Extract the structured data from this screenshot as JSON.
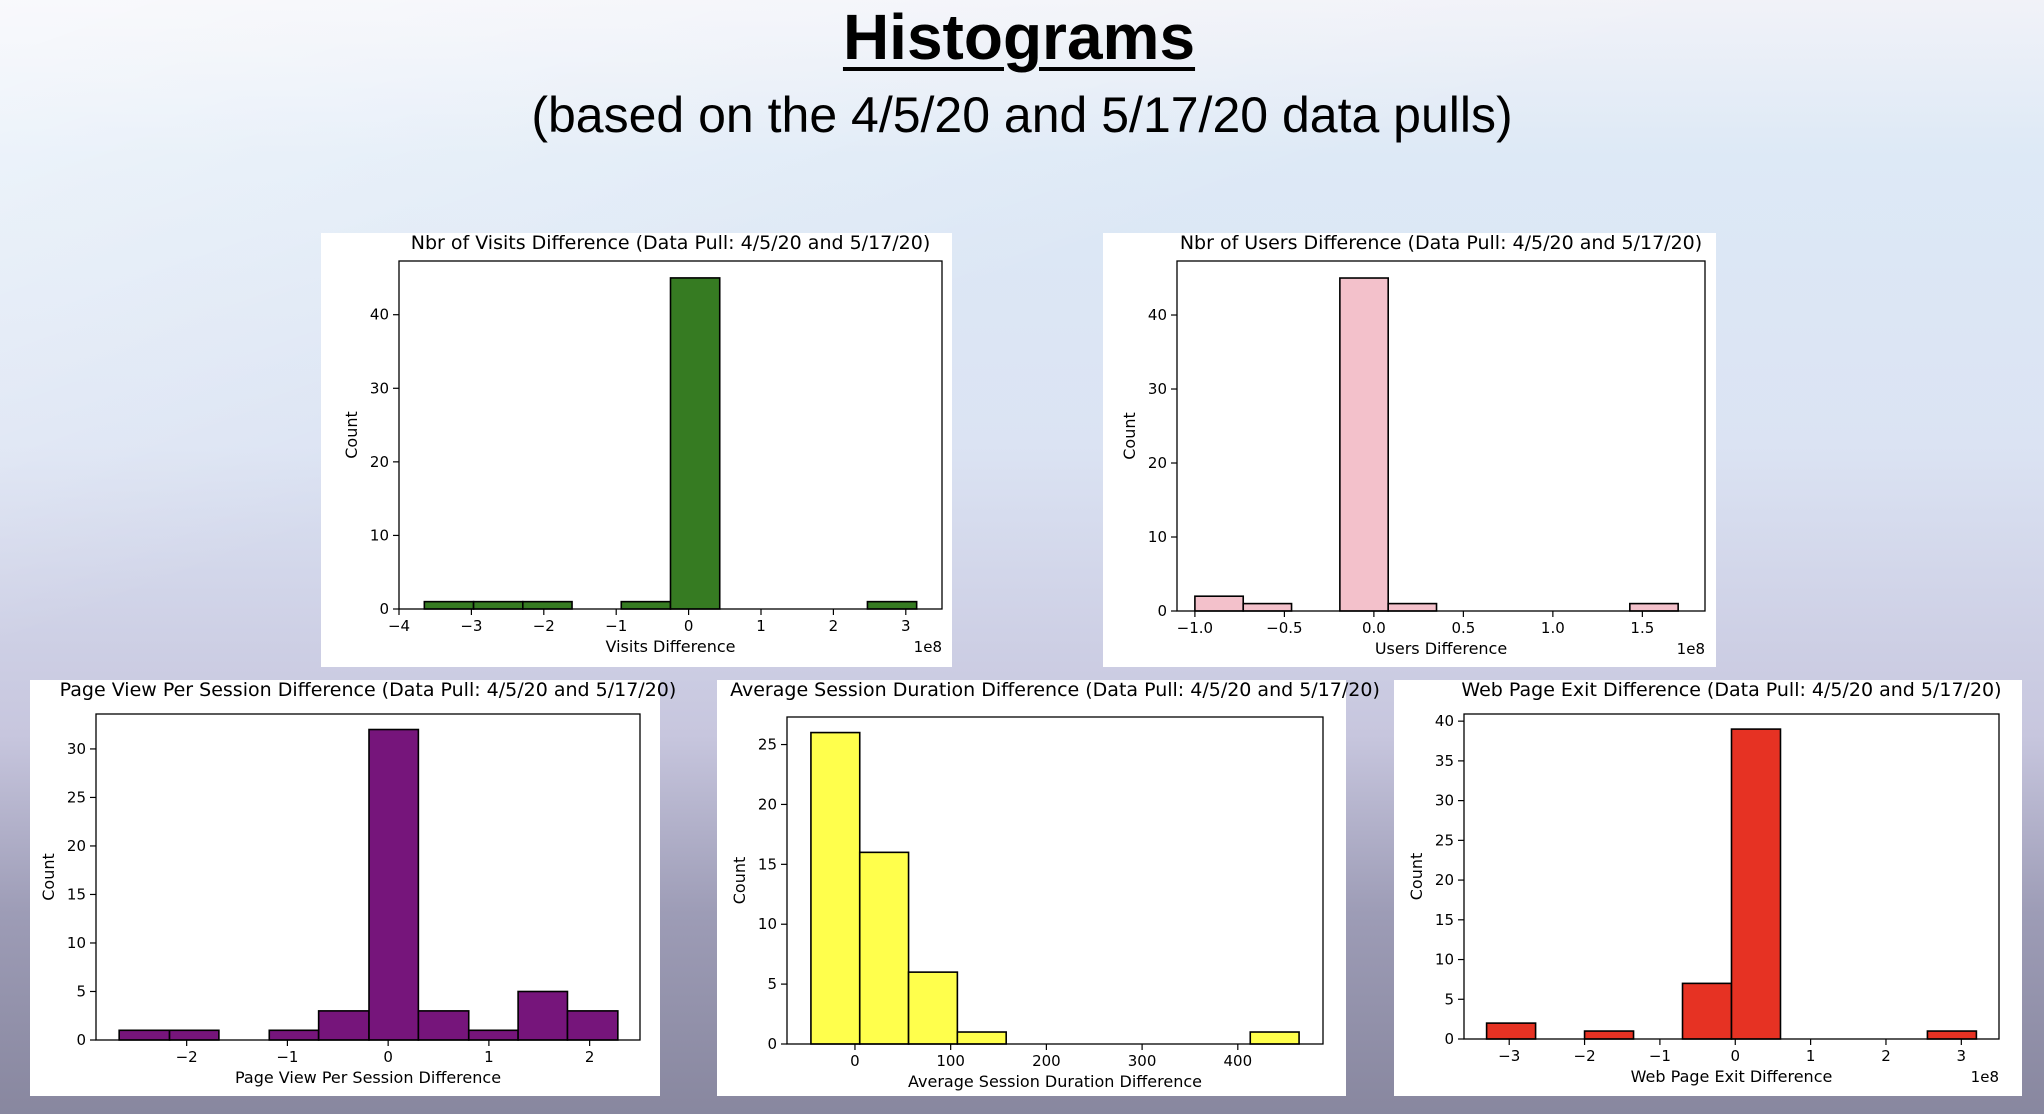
{
  "page": {
    "title": "Histograms",
    "subtitle": "(based on the 4/5/20 and 5/17/20 data pulls)"
  },
  "chart_data": [
    {
      "type": "bar",
      "title": "Nbr of Visits Difference (Data Pull: 4/5/20 and 5/17/20)",
      "xlabel": "Visits Difference",
      "ylabel": "Count",
      "offset_text": "1e8",
      "bin_edges": [
        -3.65,
        -2.97,
        -2.29,
        -1.61,
        -0.93,
        -0.25,
        0.43,
        1.11,
        1.79,
        2.47,
        3.15
      ],
      "counts": [
        1,
        1,
        1,
        0,
        1,
        45,
        0,
        0,
        0,
        1
      ],
      "xlim": [
        -4,
        3.5
      ],
      "ylim": [
        0,
        47.3
      ],
      "xticks": [
        -4,
        -3,
        -2,
        -1,
        0,
        1,
        2,
        3
      ],
      "xtick_labels": [
        "−4",
        "−3",
        "−2",
        "−1",
        "0",
        "1",
        "2",
        "3"
      ],
      "yticks": [
        0,
        10,
        20,
        30,
        40
      ],
      "ytick_labels": [
        "0",
        "10",
        "20",
        "30",
        "40"
      ],
      "color": "#367b22",
      "grid": false,
      "legend": "none"
    },
    {
      "type": "bar",
      "title": "Nbr of Users Difference (Data Pull: 4/5/20 and 5/17/20)",
      "xlabel": "Users Difference",
      "ylabel": "Count",
      "offset_text": "1e8",
      "bin_edges": [
        -1.0,
        -0.73,
        -0.46,
        -0.19,
        0.08,
        0.35,
        0.62,
        0.89,
        1.16,
        1.43,
        1.7
      ],
      "counts": [
        2,
        1,
        0,
        45,
        1,
        0,
        0,
        0,
        0,
        1
      ],
      "xlim": [
        -1.1,
        1.85
      ],
      "ylim": [
        0,
        47.3
      ],
      "xticks": [
        -1.0,
        -0.5,
        0.0,
        0.5,
        1.0,
        1.5
      ],
      "xtick_labels": [
        "−1.0",
        "−0.5",
        "0.0",
        "0.5",
        "1.0",
        "1.5"
      ],
      "yticks": [
        0,
        10,
        20,
        30,
        40
      ],
      "ytick_labels": [
        "0",
        "10",
        "20",
        "30",
        "40"
      ],
      "color": "#f3c1cb",
      "grid": false,
      "legend": "none"
    },
    {
      "type": "bar",
      "title": "Page View Per Session Difference (Data Pull: 4/5/20 and 5/17/20)",
      "xlabel": "Page View Per Session Difference",
      "ylabel": "Count",
      "offset_text": "",
      "bin_edges": [
        -2.67,
        -2.17,
        -1.68,
        -1.18,
        -0.69,
        -0.19,
        0.3,
        0.8,
        1.29,
        1.78,
        2.28
      ],
      "counts": [
        1,
        1,
        0,
        1,
        3,
        32,
        3,
        1,
        5,
        3
      ],
      "xlim": [
        -2.9,
        2.5
      ],
      "ylim": [
        0,
        33.6
      ],
      "xticks": [
        -2,
        -1,
        0,
        1,
        2
      ],
      "xtick_labels": [
        "−2",
        "−1",
        "0",
        "1",
        "2"
      ],
      "yticks": [
        0,
        5,
        10,
        15,
        20,
        25,
        30
      ],
      "ytick_labels": [
        "0",
        "5",
        "10",
        "15",
        "20",
        "25",
        "30"
      ],
      "color": "#76157b",
      "grid": false,
      "legend": "none"
    },
    {
      "type": "bar",
      "title": "Average Session Duration Difference (Data Pull: 4/5/20 and 5/17/20)",
      "xlabel": "Average Session Duration Difference",
      "ylabel": "Count",
      "offset_text": "",
      "bin_edges": [
        -46,
        5,
        56,
        107,
        158,
        209,
        260,
        311,
        362,
        413,
        464
      ],
      "counts": [
        26,
        16,
        6,
        1,
        0,
        0,
        0,
        0,
        0,
        1
      ],
      "xlim": [
        -71,
        489
      ],
      "ylim": [
        0,
        27.3
      ],
      "xticks": [
        0,
        100,
        200,
        300,
        400
      ],
      "xtick_labels": [
        "0",
        "100",
        "200",
        "300",
        "400"
      ],
      "yticks": [
        0,
        5,
        10,
        15,
        20,
        25
      ],
      "ytick_labels": [
        "0",
        "5",
        "10",
        "15",
        "20",
        "25"
      ],
      "color": "#ffff4c",
      "grid": false,
      "legend": "none"
    },
    {
      "type": "bar",
      "title": "Web Page Exit Difference (Data Pull: 4/5/20 and 5/17/20)",
      "xlabel": "Web Page Exit Difference",
      "ylabel": "Count",
      "offset_text": "1e8",
      "bin_edges": [
        -3.3,
        -2.65,
        -2.0,
        -1.35,
        -0.7,
        -0.05,
        0.6,
        1.25,
        1.9,
        2.55,
        3.2
      ],
      "counts": [
        2,
        0,
        1,
        0,
        7,
        39,
        0,
        0,
        0,
        1
      ],
      "xlim": [
        -3.6,
        3.5
      ],
      "ylim": [
        0,
        40.9
      ],
      "xticks": [
        -3,
        -2,
        -1,
        0,
        1,
        2,
        3
      ],
      "xtick_labels": [
        "−3",
        "−2",
        "−1",
        "0",
        "1",
        "2",
        "3"
      ],
      "yticks": [
        0,
        5,
        10,
        15,
        20,
        25,
        30,
        35,
        40
      ],
      "ytick_labels": [
        "0",
        "5",
        "10",
        "15",
        "20",
        "25",
        "30",
        "35",
        "40"
      ],
      "color": "#e63223",
      "grid": false,
      "legend": "none"
    }
  ]
}
